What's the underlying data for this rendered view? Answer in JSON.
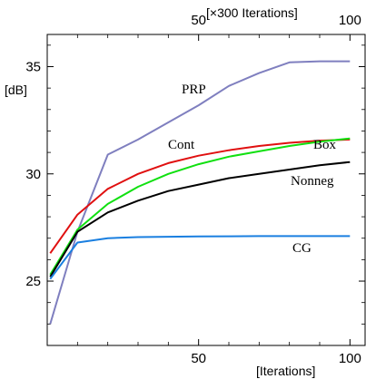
{
  "chart_data": {
    "type": "line",
    "xlabel": "[Iterations]",
    "x2label": "[×300 Iterations]",
    "ylabel": "[dB]",
    "xlim": [
      0,
      105
    ],
    "ylim": [
      22,
      36.5
    ],
    "x_ticks": [
      50,
      100
    ],
    "x2_ticks": [
      50,
      100
    ],
    "y_ticks": [
      25,
      30,
      35
    ],
    "x_tick_labels": [
      "50",
      "100"
    ],
    "x2_tick_labels": [
      "50",
      "100"
    ],
    "y_tick_labels": [
      "25",
      "30",
      "35"
    ],
    "grid": false,
    "series": [
      {
        "name": "PRP",
        "color": "#7f7fbf",
        "x": [
          1,
          10,
          20,
          30,
          40,
          50,
          60,
          70,
          80,
          90,
          100
        ],
        "y": [
          23.0,
          27.3,
          30.9,
          31.6,
          32.4,
          33.2,
          34.1,
          34.7,
          35.2,
          35.25,
          35.25
        ]
      },
      {
        "name": "Cont",
        "color": "#e01010",
        "x": [
          1,
          10,
          20,
          30,
          40,
          50,
          60,
          70,
          80,
          90,
          100
        ],
        "y": [
          26.3,
          28.1,
          29.3,
          30.0,
          30.5,
          30.85,
          31.1,
          31.3,
          31.45,
          31.55,
          31.6
        ]
      },
      {
        "name": "Box",
        "color": "#10e010",
        "x": [
          1,
          10,
          20,
          30,
          40,
          50,
          60,
          70,
          80,
          90,
          100
        ],
        "y": [
          25.3,
          27.4,
          28.6,
          29.4,
          30.0,
          30.45,
          30.8,
          31.05,
          31.3,
          31.5,
          31.65
        ]
      },
      {
        "name": "Nonneg",
        "color": "#000000",
        "x": [
          1,
          10,
          20,
          30,
          40,
          50,
          60,
          70,
          80,
          90,
          100
        ],
        "y": [
          25.2,
          27.3,
          28.2,
          28.75,
          29.2,
          29.5,
          29.8,
          30.0,
          30.2,
          30.4,
          30.55
        ]
      },
      {
        "name": "CG",
        "color": "#1a7fe0",
        "x": [
          1,
          10,
          20,
          30,
          40,
          50,
          60,
          70,
          80,
          90,
          100
        ],
        "y": [
          25.1,
          26.8,
          27.0,
          27.05,
          27.07,
          27.08,
          27.09,
          27.1,
          27.1,
          27.1,
          27.1
        ]
      }
    ]
  }
}
